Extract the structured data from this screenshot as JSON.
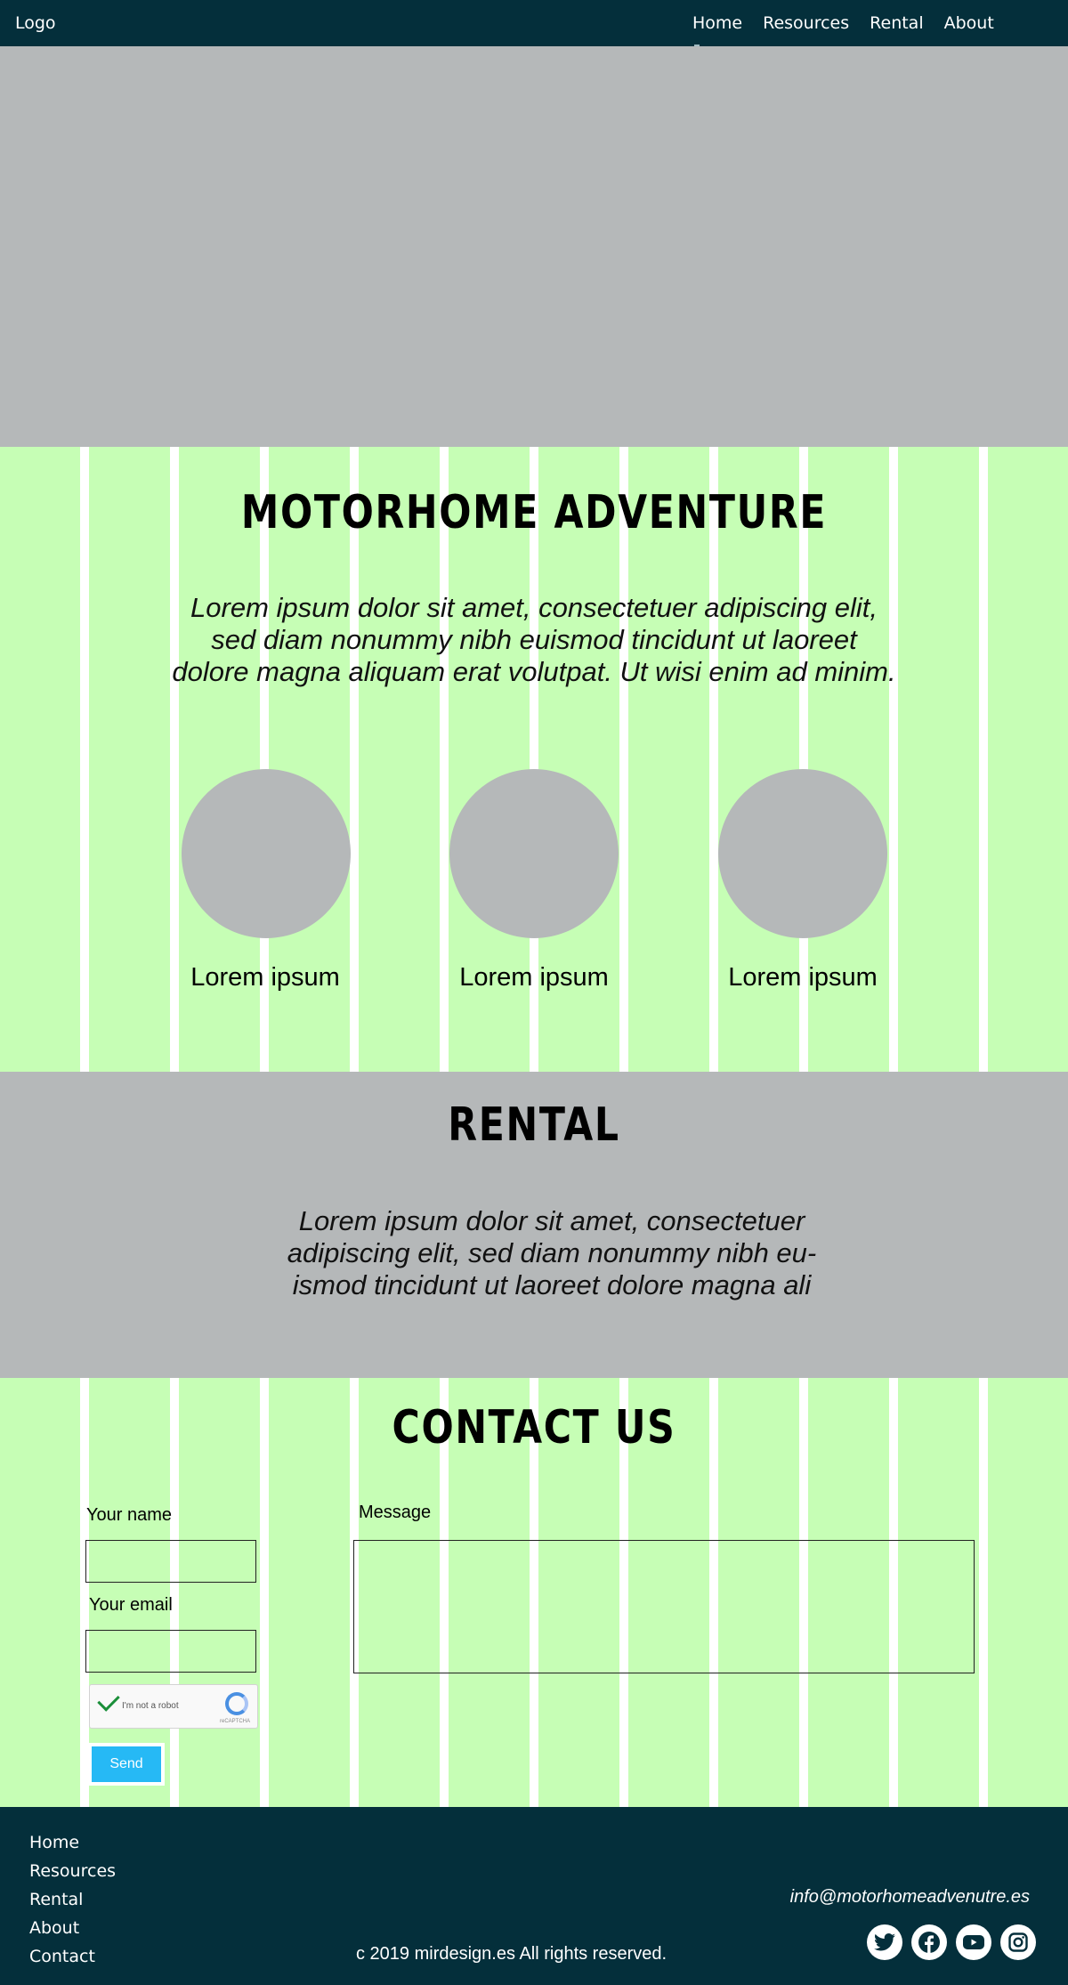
{
  "nav": {
    "logo": "Logo",
    "items": [
      "Home",
      "Resources",
      "Rental",
      "About"
    ]
  },
  "intro": {
    "title": "MOTORHOME ADVENTURE",
    "text": "Lorem ipsum dolor sit amet, consectetuer adipiscing elit, sed diam nonummy nibh euismod tincidunt ut laoreet dolore magna aliquam erat volutpat. Ut wisi enim ad minim.",
    "features": [
      "Lorem ipsum",
      "Lorem ipsum",
      "Lorem ipsum"
    ]
  },
  "rental": {
    "title": "RENTAL",
    "text": "Lorem ipsum dolor sit amet, consectetuer adipiscing elit, sed diam nonummy nibh eu-ismod tincidunt ut laoreet dolore magna ali"
  },
  "contact": {
    "title": "CONTACT US",
    "name_label": "Your name",
    "email_label": "Your email",
    "message_label": "Message",
    "captcha_text": "I'm not a robot",
    "captcha_brand": "reCAPTCHA",
    "send_label": "Send"
  },
  "footer": {
    "links": [
      "Home",
      "Resources",
      "Rental",
      "About",
      "Contact"
    ],
    "email": "info@motorhomeadvenutre.es",
    "copyright": "c 2019 mirdesign.es All rights reserved.",
    "socials": [
      "twitter-icon",
      "facebook-icon",
      "youtube-icon",
      "instagram-icon"
    ]
  },
  "colors": {
    "dark": "#042f3b",
    "gray": "#b5b8b9",
    "green": "#c6feb5",
    "button": "#26b9f5"
  }
}
